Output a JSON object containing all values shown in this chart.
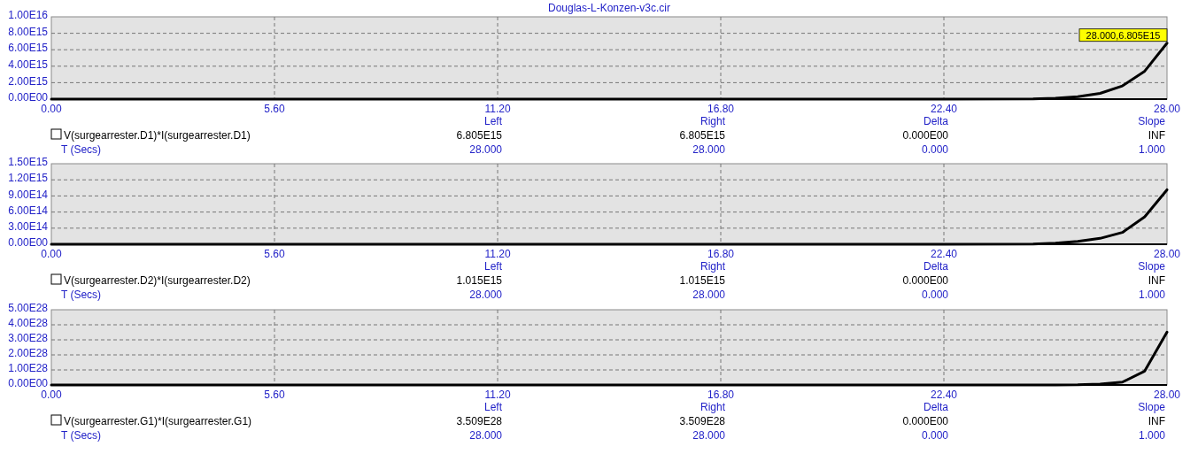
{
  "chart_data": [
    {
      "type": "line",
      "title": "Douglas-L-Konzen-v3c.cir",
      "xlabel": "T (Secs)",
      "x": [
        0,
        22.4,
        24.64,
        25.2,
        25.76,
        26.32,
        26.88,
        27.44,
        28
      ],
      "series": [
        {
          "name": "V(surgearrester.D1)*I(surgearrester.D1)",
          "color": "#000000",
          "values": [
            0,
            0,
            30000000000000.0,
            120000000000000.0,
            300000000000000.0,
            700000000000000.0,
            1600000000000000.0,
            3400000000000000.0,
            6805000000000000.0
          ]
        }
      ],
      "xlim": [
        0,
        28
      ],
      "xticks": [
        {
          "value": 0,
          "label": "0.00"
        },
        {
          "value": 5.6,
          "label": "5.60"
        },
        {
          "value": 11.2,
          "label": "11.20"
        },
        {
          "value": 16.8,
          "label": "16.80"
        },
        {
          "value": 22.4,
          "label": "22.40"
        },
        {
          "value": 28,
          "label": "28.00"
        }
      ],
      "ylim": [
        0,
        1e+16
      ],
      "yticks": [
        {
          "value": 0,
          "label": "0.00E00"
        },
        {
          "value": 2000000000000000.0,
          "label": "2.00E15"
        },
        {
          "value": 4000000000000000.0,
          "label": "4.00E15"
        },
        {
          "value": 6000000000000000.0,
          "label": "6.00E15"
        },
        {
          "value": 8000000000000000.0,
          "label": "8.00E15"
        },
        {
          "value": 1e+16,
          "label": "1.00E16"
        }
      ],
      "grid": true,
      "legend": "bottom",
      "annotations": [
        {
          "text": "28.000,6.805E15",
          "x": 28,
          "y": 6805000000000000.0
        },
        "Left",
        "Right",
        "Delta",
        "Slope",
        "6.805E15",
        "6.805E15",
        "0.000E00",
        "INF",
        "28.000",
        "28.000",
        "0.000",
        "1.000"
      ]
    },
    {
      "type": "line",
      "xlabel": "T (Secs)",
      "x": [
        0,
        22.4,
        24.64,
        25.2,
        25.76,
        26.32,
        26.88,
        27.44,
        28
      ],
      "series": [
        {
          "name": "V(surgearrester.D2)*I(surgearrester.D2)",
          "color": "#000000",
          "values": [
            0,
            0,
            5000000000000.0,
            20000000000000.0,
            55000000000000.0,
            110000000000000.0,
            220000000000000.0,
            510000000000000.0,
            1015000000000000.0
          ]
        }
      ],
      "xlim": [
        0,
        28
      ],
      "xticks": [
        {
          "value": 0,
          "label": "0.00"
        },
        {
          "value": 5.6,
          "label": "5.60"
        },
        {
          "value": 11.2,
          "label": "11.20"
        },
        {
          "value": 16.8,
          "label": "16.80"
        },
        {
          "value": 22.4,
          "label": "22.40"
        },
        {
          "value": 28,
          "label": "28.00"
        }
      ],
      "ylim": [
        0,
        1500000000000000.0
      ],
      "yticks": [
        {
          "value": 0,
          "label": "0.00E00"
        },
        {
          "value": 300000000000000.0,
          "label": "3.00E14"
        },
        {
          "value": 600000000000000.0,
          "label": "6.00E14"
        },
        {
          "value": 900000000000000.0,
          "label": "9.00E14"
        },
        {
          "value": 1200000000000000.0,
          "label": "1.20E15"
        },
        {
          "value": 1500000000000000.0,
          "label": "1.50E15"
        }
      ],
      "grid": true,
      "legend": "bottom",
      "annotations": [
        "Left",
        "Right",
        "Delta",
        "Slope",
        "1.015E15",
        "1.015E15",
        "0.000E00",
        "INF",
        "28.000",
        "28.000",
        "0.000",
        "1.000"
      ]
    },
    {
      "type": "line",
      "xlabel": "T (Secs)",
      "x": [
        0,
        22.4,
        24.64,
        25.2,
        25.76,
        26.32,
        26.88,
        27.44,
        28
      ],
      "series": [
        {
          "name": "V(surgearrester.G1)*I(surgearrester.G1)",
          "color": "#000000",
          "values": [
            0,
            0,
            0,
            0,
            1e+26,
            6e+26,
            1.9e+27,
            9.2e+27,
            3.509e+28
          ]
        }
      ],
      "xlim": [
        0,
        28
      ],
      "xticks": [
        {
          "value": 0,
          "label": "0.00"
        },
        {
          "value": 5.6,
          "label": "5.60"
        },
        {
          "value": 11.2,
          "label": "11.20"
        },
        {
          "value": 16.8,
          "label": "16.80"
        },
        {
          "value": 22.4,
          "label": "22.40"
        },
        {
          "value": 28,
          "label": "28.00"
        }
      ],
      "ylim": [
        0,
        5e+28
      ],
      "yticks": [
        {
          "value": 0,
          "label": "0.00E00"
        },
        {
          "value": 1e+28,
          "label": "1.00E28"
        },
        {
          "value": 2e+28,
          "label": "2.00E28"
        },
        {
          "value": 3e+28,
          "label": "3.00E28"
        },
        {
          "value": 4e+28,
          "label": "4.00E28"
        },
        {
          "value": 5e+28,
          "label": "5.00E28"
        }
      ],
      "grid": true,
      "legend": "bottom",
      "annotations": [
        "Left",
        "Right",
        "Delta",
        "Slope",
        "3.509E28",
        "3.509E28",
        "0.000E00",
        "INF",
        "28.000",
        "28.000",
        "0.000",
        "1.000"
      ]
    }
  ]
}
